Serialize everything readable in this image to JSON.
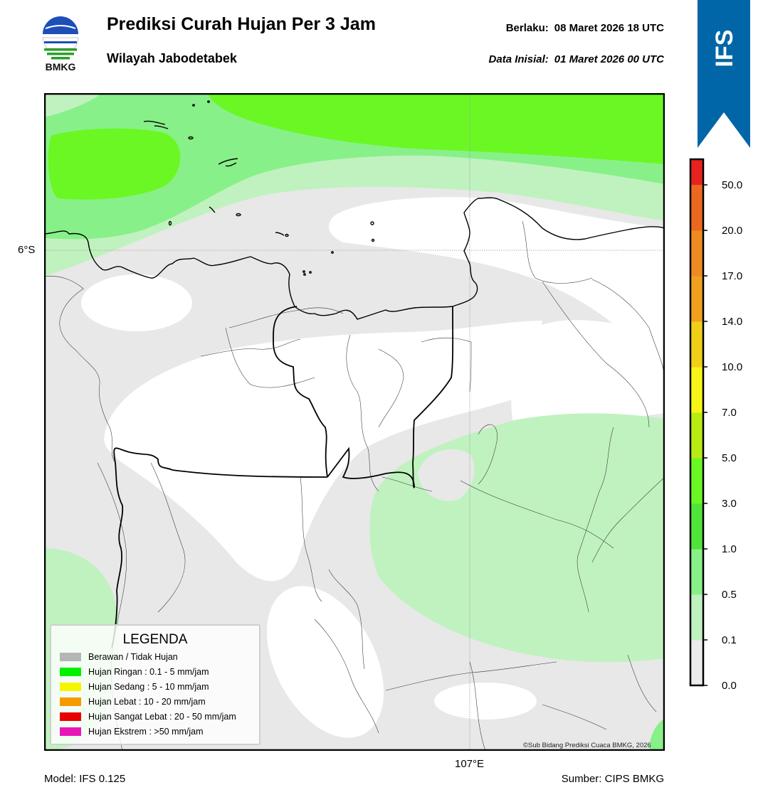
{
  "header": {
    "logo_text": "BMKG",
    "title": "Prediksi Curah Hujan Per 3 Jam",
    "subtitle": "Wilayah Jabodetabek",
    "valid_label": "Berlaku:",
    "valid_value": "08 Maret 2026 18 UTC",
    "init_label": "Data Inisial:",
    "init_value": "01 Maret 2026 00 UTC",
    "ribbon_text": "IFS",
    "ribbon_color": "#0066a8"
  },
  "map": {
    "lat_label": "6°S",
    "lon_label": "107°E",
    "credit": "©Sub Bidang Prediksi Cuaca BMKG, 2026",
    "fill_colors": {
      "none": "#e8e8e8",
      "very_light": "#c0f2bf",
      "light": "#88f088",
      "medium": "#6af724",
      "white": "#ffffff"
    }
  },
  "colorbar": {
    "ticks": [
      "0.0",
      "0.1",
      "0.5",
      "1.0",
      "3.0",
      "5.0",
      "7.0",
      "10.0",
      "14.0",
      "17.0",
      "20.0",
      "50.0"
    ],
    "colors": [
      "#ebebeb",
      "#c0f2bf",
      "#88f088",
      "#4fe43a",
      "#6af724",
      "#b8ec14",
      "#f7f418",
      "#f0cf18",
      "#f0a01e",
      "#ee8a22",
      "#ec6820",
      "#e8221e",
      "#e418b8"
    ]
  },
  "legend": {
    "title": "LEGENDA",
    "items": [
      {
        "label": "Berawan / Tidak Hujan",
        "color": "#b5b5b5"
      },
      {
        "label": "Hujan Ringan : 0.1 - 5 mm/jam",
        "color": "#00f000"
      },
      {
        "label": "Hujan Sedang : 5 - 10 mm/jam",
        "color": "#f5f500"
      },
      {
        "label": "Hujan Lebat : 10 - 20 mm/jam",
        "color": "#f59a00"
      },
      {
        "label": "Hujan Sangat Lebat : 20 - 50 mm/jam",
        "color": "#e80000"
      },
      {
        "label": "Hujan Ekstrem : >50 mm/jam",
        "color": "#e818b8"
      }
    ]
  },
  "footer": {
    "model": "Model: IFS 0.125",
    "source": "Sumber: CIPS BMKG"
  }
}
